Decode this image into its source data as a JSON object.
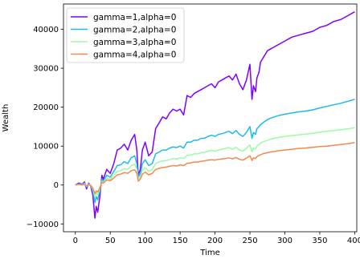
{
  "chart_data": {
    "type": "line",
    "xlabel": "Time",
    "ylabel": "Wealth",
    "xlim": [
      -17,
      403
    ],
    "ylim": [
      -12000,
      46500
    ],
    "xticks": [
      0,
      50,
      100,
      150,
      200,
      250,
      300,
      350,
      400
    ],
    "yticks": [
      -10000,
      0,
      10000,
      20000,
      30000,
      40000
    ],
    "grid": false,
    "legend_position": "top-left",
    "series": [
      {
        "name": "gamma=1,alpha=0",
        "color": "#7f00ff",
        "x": [
          0,
          5,
          10,
          13,
          16,
          19,
          22,
          25,
          28,
          30,
          32,
          35,
          38,
          40,
          45,
          50,
          55,
          60,
          65,
          70,
          75,
          80,
          85,
          88,
          90,
          93,
          96,
          100,
          105,
          110,
          115,
          120,
          125,
          130,
          135,
          140,
          145,
          150,
          155,
          160,
          165,
          170,
          175,
          180,
          185,
          190,
          195,
          200,
          205,
          210,
          215,
          220,
          225,
          230,
          235,
          240,
          245,
          250,
          253,
          255,
          258,
          260,
          263,
          265,
          270,
          275,
          280,
          285,
          290,
          300,
          310,
          320,
          330,
          340,
          350,
          360,
          370,
          380,
          390,
          400
        ],
        "values": [
          0,
          500,
          200,
          800,
          -1000,
          500,
          -300,
          -2500,
          -8500,
          -5500,
          -7000,
          -3000,
          2500,
          1500,
          4000,
          3000,
          5500,
          9000,
          9500,
          10500,
          9000,
          11500,
          13000,
          9000,
          2500,
          4000,
          9000,
          11000,
          7500,
          8500,
          14500,
          16000,
          17500,
          17000,
          18500,
          19500,
          19000,
          19500,
          18000,
          23000,
          22500,
          23500,
          24000,
          24500,
          25000,
          25500,
          26000,
          25000,
          26500,
          27000,
          27500,
          28000,
          27000,
          28500,
          26000,
          24500,
          27000,
          31000,
          22000,
          25500,
          24000,
          27500,
          29000,
          31500,
          33000,
          34500,
          35000,
          35500,
          36000,
          37000,
          38000,
          38500,
          39000,
          39500,
          40500,
          41000,
          42000,
          42500,
          43500,
          44500
        ]
      },
      {
        "name": "gamma=2,alpha=0",
        "color": "#1fb9e9",
        "x": [
          0,
          5,
          10,
          13,
          16,
          19,
          22,
          25,
          28,
          30,
          32,
          35,
          38,
          40,
          45,
          50,
          55,
          60,
          65,
          70,
          75,
          80,
          85,
          88,
          90,
          93,
          96,
          100,
          105,
          110,
          115,
          120,
          125,
          130,
          135,
          140,
          145,
          150,
          155,
          160,
          165,
          170,
          175,
          180,
          185,
          190,
          195,
          200,
          205,
          210,
          215,
          220,
          225,
          230,
          235,
          240,
          245,
          250,
          253,
          255,
          258,
          260,
          263,
          265,
          270,
          275,
          280,
          285,
          290,
          300,
          310,
          320,
          330,
          340,
          350,
          360,
          370,
          380,
          390,
          400
        ],
        "values": [
          0,
          300,
          100,
          500,
          -500,
          300,
          -200,
          -1500,
          -4500,
          -3000,
          -3800,
          -1500,
          1500,
          1000,
          2500,
          2000,
          3500,
          5000,
          5200,
          6000,
          5500,
          7000,
          7500,
          5500,
          2000,
          2800,
          5500,
          6500,
          5000,
          5500,
          8000,
          8500,
          9000,
          9000,
          9500,
          9800,
          9600,
          10000,
          9500,
          11000,
          11000,
          11500,
          11500,
          12000,
          12000,
          12500,
          12800,
          12500,
          13000,
          13200,
          13500,
          13800,
          13200,
          14000,
          13000,
          12500,
          13500,
          15000,
          12000,
          13500,
          13000,
          14500,
          15000,
          15500,
          16200,
          16800,
          17200,
          17500,
          17800,
          18200,
          18500,
          18800,
          19000,
          19300,
          19800,
          20200,
          20600,
          21000,
          21500,
          22000
        ]
      },
      {
        "name": "gamma=3,alpha=0",
        "color": "#9ffaa5",
        "x": [
          0,
          5,
          10,
          13,
          16,
          19,
          22,
          25,
          28,
          30,
          32,
          35,
          38,
          40,
          45,
          50,
          55,
          60,
          65,
          70,
          75,
          80,
          85,
          88,
          90,
          93,
          96,
          100,
          105,
          110,
          115,
          120,
          125,
          130,
          135,
          140,
          145,
          150,
          155,
          160,
          165,
          170,
          175,
          180,
          185,
          190,
          195,
          200,
          205,
          210,
          215,
          220,
          225,
          230,
          235,
          240,
          245,
          250,
          253,
          255,
          258,
          260,
          263,
          265,
          270,
          275,
          280,
          285,
          290,
          300,
          310,
          320,
          330,
          340,
          350,
          360,
          370,
          380,
          390,
          400
        ],
        "values": [
          0,
          200,
          50,
          300,
          -300,
          200,
          -100,
          -1000,
          -3000,
          -2000,
          -2500,
          -1000,
          1000,
          700,
          1800,
          1500,
          2500,
          3500,
          3700,
          4200,
          4000,
          5000,
          5300,
          4000,
          1500,
          2000,
          3800,
          4500,
          3500,
          4000,
          5500,
          6000,
          6200,
          6300,
          6500,
          6800,
          6700,
          7000,
          6800,
          7600,
          7700,
          8000,
          8000,
          8300,
          8400,
          8700,
          8900,
          8700,
          9000,
          9200,
          9400,
          9600,
          9200,
          9700,
          9000,
          8700,
          9400,
          10300,
          8500,
          9500,
          9200,
          10000,
          10400,
          10800,
          11200,
          11500,
          11800,
          12000,
          12200,
          12500,
          12700,
          12900,
          13100,
          13300,
          13600,
          13800,
          14000,
          14200,
          14400,
          14700
        ]
      },
      {
        "name": "gamma=4,alpha=0",
        "color": "#f4894a",
        "x": [
          0,
          5,
          10,
          13,
          16,
          19,
          22,
          25,
          28,
          30,
          32,
          35,
          38,
          40,
          45,
          50,
          55,
          60,
          65,
          70,
          75,
          80,
          85,
          88,
          90,
          93,
          96,
          100,
          105,
          110,
          115,
          120,
          125,
          130,
          135,
          140,
          145,
          150,
          155,
          160,
          165,
          170,
          175,
          180,
          185,
          190,
          195,
          200,
          205,
          210,
          215,
          220,
          225,
          230,
          235,
          240,
          245,
          250,
          253,
          255,
          258,
          260,
          263,
          265,
          270,
          275,
          280,
          285,
          290,
          300,
          310,
          320,
          330,
          340,
          350,
          360,
          370,
          380,
          390,
          400
        ],
        "values": [
          0,
          150,
          0,
          200,
          -200,
          100,
          -100,
          -800,
          -2200,
          -1500,
          -1800,
          -700,
          700,
          500,
          1300,
          1100,
          1800,
          2600,
          2800,
          3200,
          3000,
          3700,
          3900,
          3000,
          1000,
          1500,
          2800,
          3300,
          2600,
          3000,
          4000,
          4300,
          4500,
          4600,
          4800,
          5000,
          4900,
          5200,
          5000,
          5600,
          5700,
          5900,
          5900,
          6100,
          6200,
          6400,
          6500,
          6400,
          6600,
          6700,
          6800,
          7000,
          6700,
          7100,
          6600,
          6400,
          6900,
          7500,
          6300,
          7000,
          6800,
          7300,
          7600,
          7800,
          8100,
          8300,
          8500,
          8600,
          8800,
          9000,
          9200,
          9400,
          9500,
          9700,
          9900,
          10000,
          10200,
          10400,
          10600,
          10900
        ]
      }
    ]
  }
}
